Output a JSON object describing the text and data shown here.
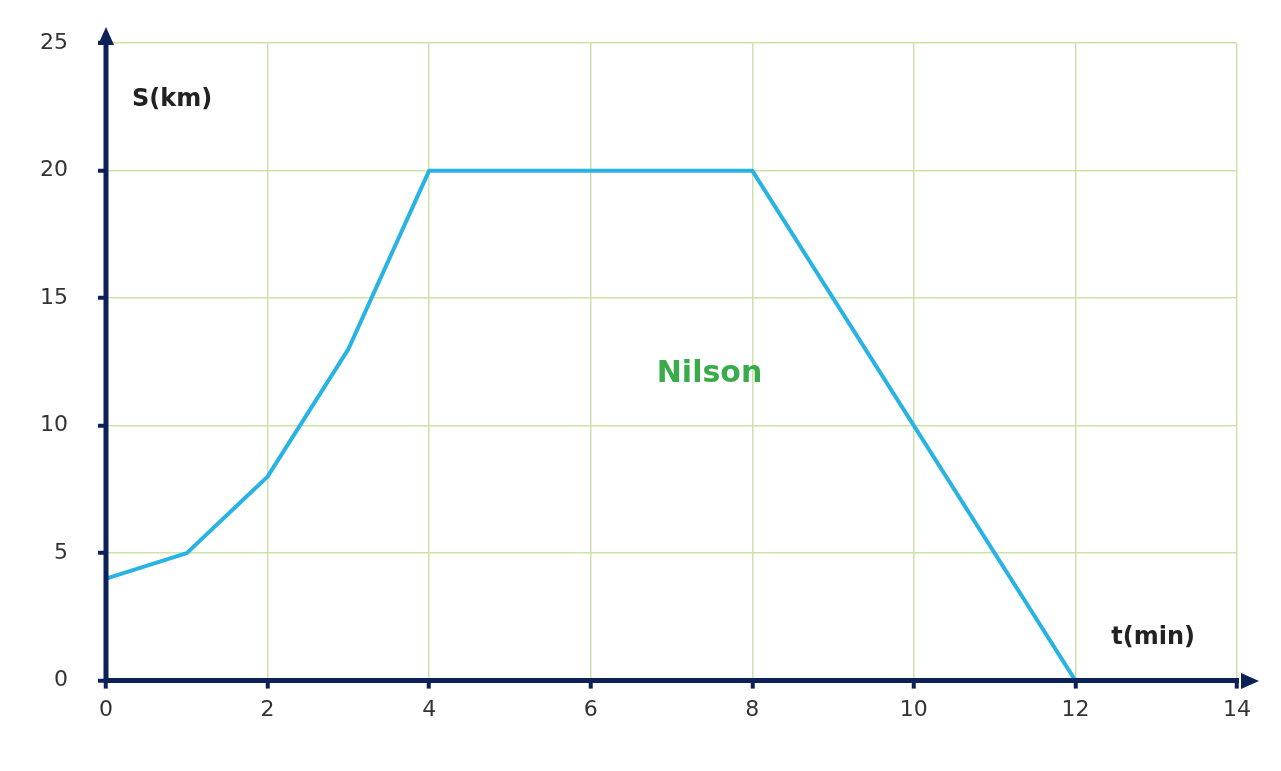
{
  "chart_data": {
    "type": "line",
    "xlabel": "t(min)",
    "ylabel": "S(km)",
    "series": [
      {
        "name": "Nilson",
        "color": "#29b3e3",
        "x": [
          0,
          1,
          2,
          3,
          4,
          8,
          10,
          12
        ],
        "values": [
          4,
          5,
          8,
          13,
          20,
          20,
          10,
          0
        ]
      }
    ],
    "xlim": [
      0,
      14
    ],
    "xticks": [
      0,
      2,
      4,
      6,
      8,
      10,
      12,
      14
    ],
    "ylim": [
      0,
      25
    ],
    "yticks": [
      0,
      5,
      10,
      15,
      20,
      25
    ],
    "grid": true,
    "legend": false,
    "marker": "none",
    "line_style": "solid"
  }
}
